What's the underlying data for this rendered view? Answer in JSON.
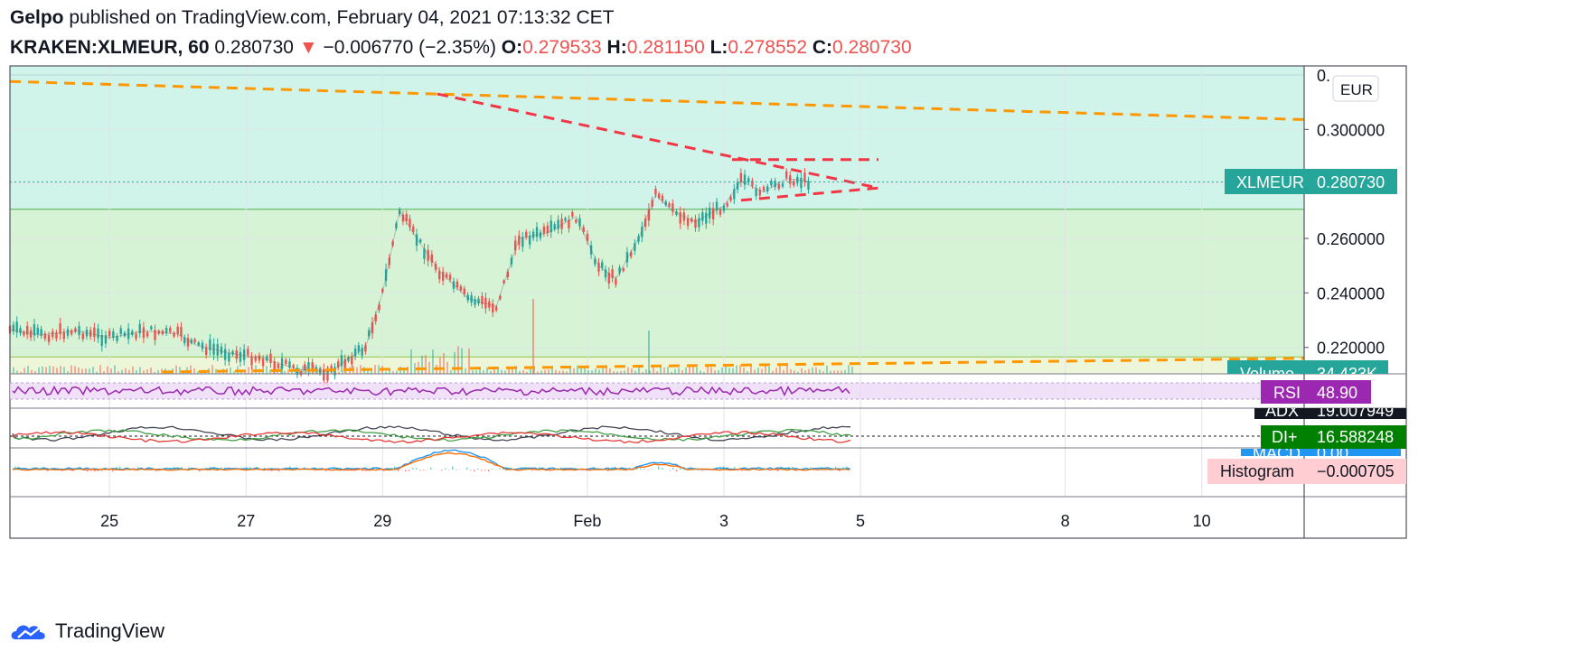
{
  "header": {
    "author": "Gelpo",
    "published_text": "published on TradingView.com, February 04, 2021 07:13:32 CET",
    "symbol": "KRAKEN:XLMEUR, 60",
    "last": "0.280730",
    "change": "−0.006770 (−2.35%)",
    "o_label": "O:",
    "o_value": "0.279533",
    "h_label": "H:",
    "h_value": "0.281150",
    "l_label": "L:",
    "l_value": "0.278552",
    "c_label": "C:",
    "c_value": "0.280730"
  },
  "footer": {
    "brand": "TradingView"
  },
  "chart_data": {
    "type": "line",
    "title": "",
    "currency": "EUR",
    "price_axis": {
      "ticks": [
        "0.300000",
        "0.260000",
        "0.240000",
        "0.220000"
      ],
      "top_partial": "0.",
      "ylim": [
        0.2103,
        0.3233
      ]
    },
    "x_ticks": [
      "25",
      "27",
      "29",
      "Feb",
      "3",
      "5",
      "8",
      "10"
    ],
    "time_range": [
      "2021-01-23T13:00",
      "2021-02-11T12:00"
    ],
    "series": [
      {
        "name": "XLMEUR",
        "points": [
          [
            "2021-01-23T13:00",
            0.2265
          ],
          [
            "2021-01-24T00:00",
            0.2245
          ],
          [
            "2021-01-24T12:00",
            0.2262
          ],
          [
            "2021-01-25T00:00",
            0.2235
          ],
          [
            "2021-01-25T12:00",
            0.226
          ],
          [
            "2021-01-26T00:00",
            0.225
          ],
          [
            "2021-01-26T06:00",
            0.221
          ],
          [
            "2021-01-26T18:00",
            0.218
          ],
          [
            "2021-01-27T06:00",
            0.216
          ],
          [
            "2021-01-27T18:00",
            0.212
          ],
          [
            "2021-01-28T06:00",
            0.211
          ],
          [
            "2021-01-28T12:00",
            0.216
          ],
          [
            "2021-01-28T18:00",
            0.22
          ],
          [
            "2021-01-29T00:00",
            0.24
          ],
          [
            "2021-01-29T06:00",
            0.27
          ],
          [
            "2021-01-29T12:00",
            0.26
          ],
          [
            "2021-01-29T20:00",
            0.248
          ],
          [
            "2021-01-30T06:00",
            0.238
          ],
          [
            "2021-01-30T16:00",
            0.235
          ],
          [
            "2021-01-31T00:00",
            0.26
          ],
          [
            "2021-01-31T10:00",
            0.262
          ],
          [
            "2021-01-31T20:00",
            0.268
          ],
          [
            "2021-02-01T04:00",
            0.25
          ],
          [
            "2021-02-01T10:00",
            0.245
          ],
          [
            "2021-02-01T18:00",
            0.26
          ],
          [
            "2021-02-02T00:00",
            0.276
          ],
          [
            "2021-02-02T06:00",
            0.27
          ],
          [
            "2021-02-02T14:00",
            0.266
          ],
          [
            "2021-02-03T00:00",
            0.272
          ],
          [
            "2021-02-03T06:00",
            0.281
          ],
          [
            "2021-02-03T14:00",
            0.277
          ],
          [
            "2021-02-03T22:00",
            0.282
          ],
          [
            "2021-02-04T07:00",
            0.2807
          ]
        ]
      }
    ],
    "last_price_label": {
      "symbol": "XLMEUR",
      "value": "0.280730"
    },
    "volume_label": {
      "name": "Volume",
      "value": "34.433K"
    },
    "indicators": [
      {
        "name": "RSI",
        "value": "48.90",
        "color": "#9c27b0"
      },
      {
        "name": "ADX",
        "value": "19.007949",
        "color": "#131722"
      },
      {
        "name": "DI+",
        "value": "16.588248",
        "color": "#008000"
      },
      {
        "name": "MACD",
        "value": "0.00"
      },
      {
        "name": "Histogram",
        "value": "−0.000705",
        "color": "#ffcdd2"
      }
    ],
    "colors": {
      "accent_teal": "#26a69a",
      "down_red": "#ef5350",
      "trend_orange": "#ff9800",
      "pattern_red": "#f23645",
      "zone_cyan": "#d1f4ea",
      "zone_green": "#d6f3d6",
      "zone_yellow": "#edf6d8",
      "rsi_band": "#ecd9f8"
    }
  }
}
